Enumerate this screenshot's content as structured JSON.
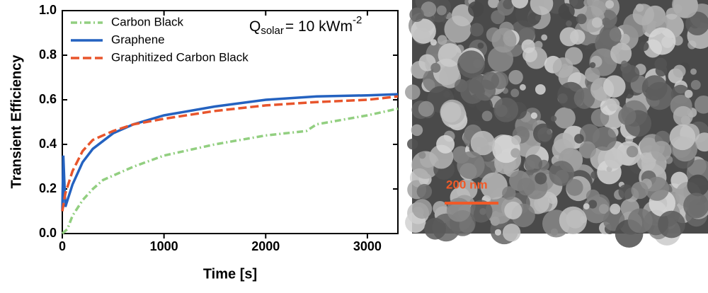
{
  "chart_data": {
    "type": "line",
    "xlabel": "Time [s]",
    "ylabel": "Transient Efficiency",
    "annotation": {
      "main": "Q",
      "sub": "solar",
      "rest": "= 10 kWm",
      "sup": "-2"
    },
    "xlim": [
      0,
      3300
    ],
    "ylim": [
      0,
      1
    ],
    "xticks": [
      0,
      1000,
      2000,
      3000
    ],
    "yticks": [
      {
        "value": 0,
        "label": "0.0"
      },
      {
        "value": 0.2,
        "label": "0.2"
      },
      {
        "value": 0.4,
        "label": "0.4"
      },
      {
        "value": 0.6,
        "label": "0.6"
      },
      {
        "value": 0.8,
        "label": "0.8"
      },
      {
        "value": 1,
        "label": "1.0"
      }
    ],
    "series": [
      {
        "name": "Carbon Black",
        "color": "#92cf80",
        "dash": "9 4 2 4",
        "x": [
          0,
          50,
          100,
          200,
          300,
          400,
          500,
          700,
          1000,
          1500,
          2000,
          2400,
          2500,
          3000,
          3300
        ],
        "values": [
          0,
          0.02,
          0.08,
          0.15,
          0.2,
          0.24,
          0.26,
          0.3,
          0.35,
          0.4,
          0.44,
          0.46,
          0.49,
          0.53,
          0.56
        ]
      },
      {
        "name": "Graphene",
        "color": "#2462c0",
        "dash": "",
        "x": [
          0,
          10,
          30,
          100,
          200,
          300,
          500,
          700,
          1000,
          1500,
          2000,
          2500,
          3000,
          3300
        ],
        "values": [
          0.1,
          0.35,
          0.12,
          0.22,
          0.32,
          0.38,
          0.45,
          0.49,
          0.53,
          0.57,
          0.6,
          0.615,
          0.62,
          0.625
        ]
      },
      {
        "name": "Graphitized Carbon Black",
        "color": "#e8552c",
        "dash": "12 5",
        "x": [
          0,
          30,
          100,
          200,
          300,
          500,
          700,
          1000,
          1500,
          2000,
          2500,
          3000,
          3300
        ],
        "values": [
          0.1,
          0.18,
          0.28,
          0.37,
          0.42,
          0.46,
          0.49,
          0.515,
          0.55,
          0.575,
          0.59,
          0.6,
          0.615
        ]
      }
    ]
  },
  "image_scale_bar": "200 nm"
}
